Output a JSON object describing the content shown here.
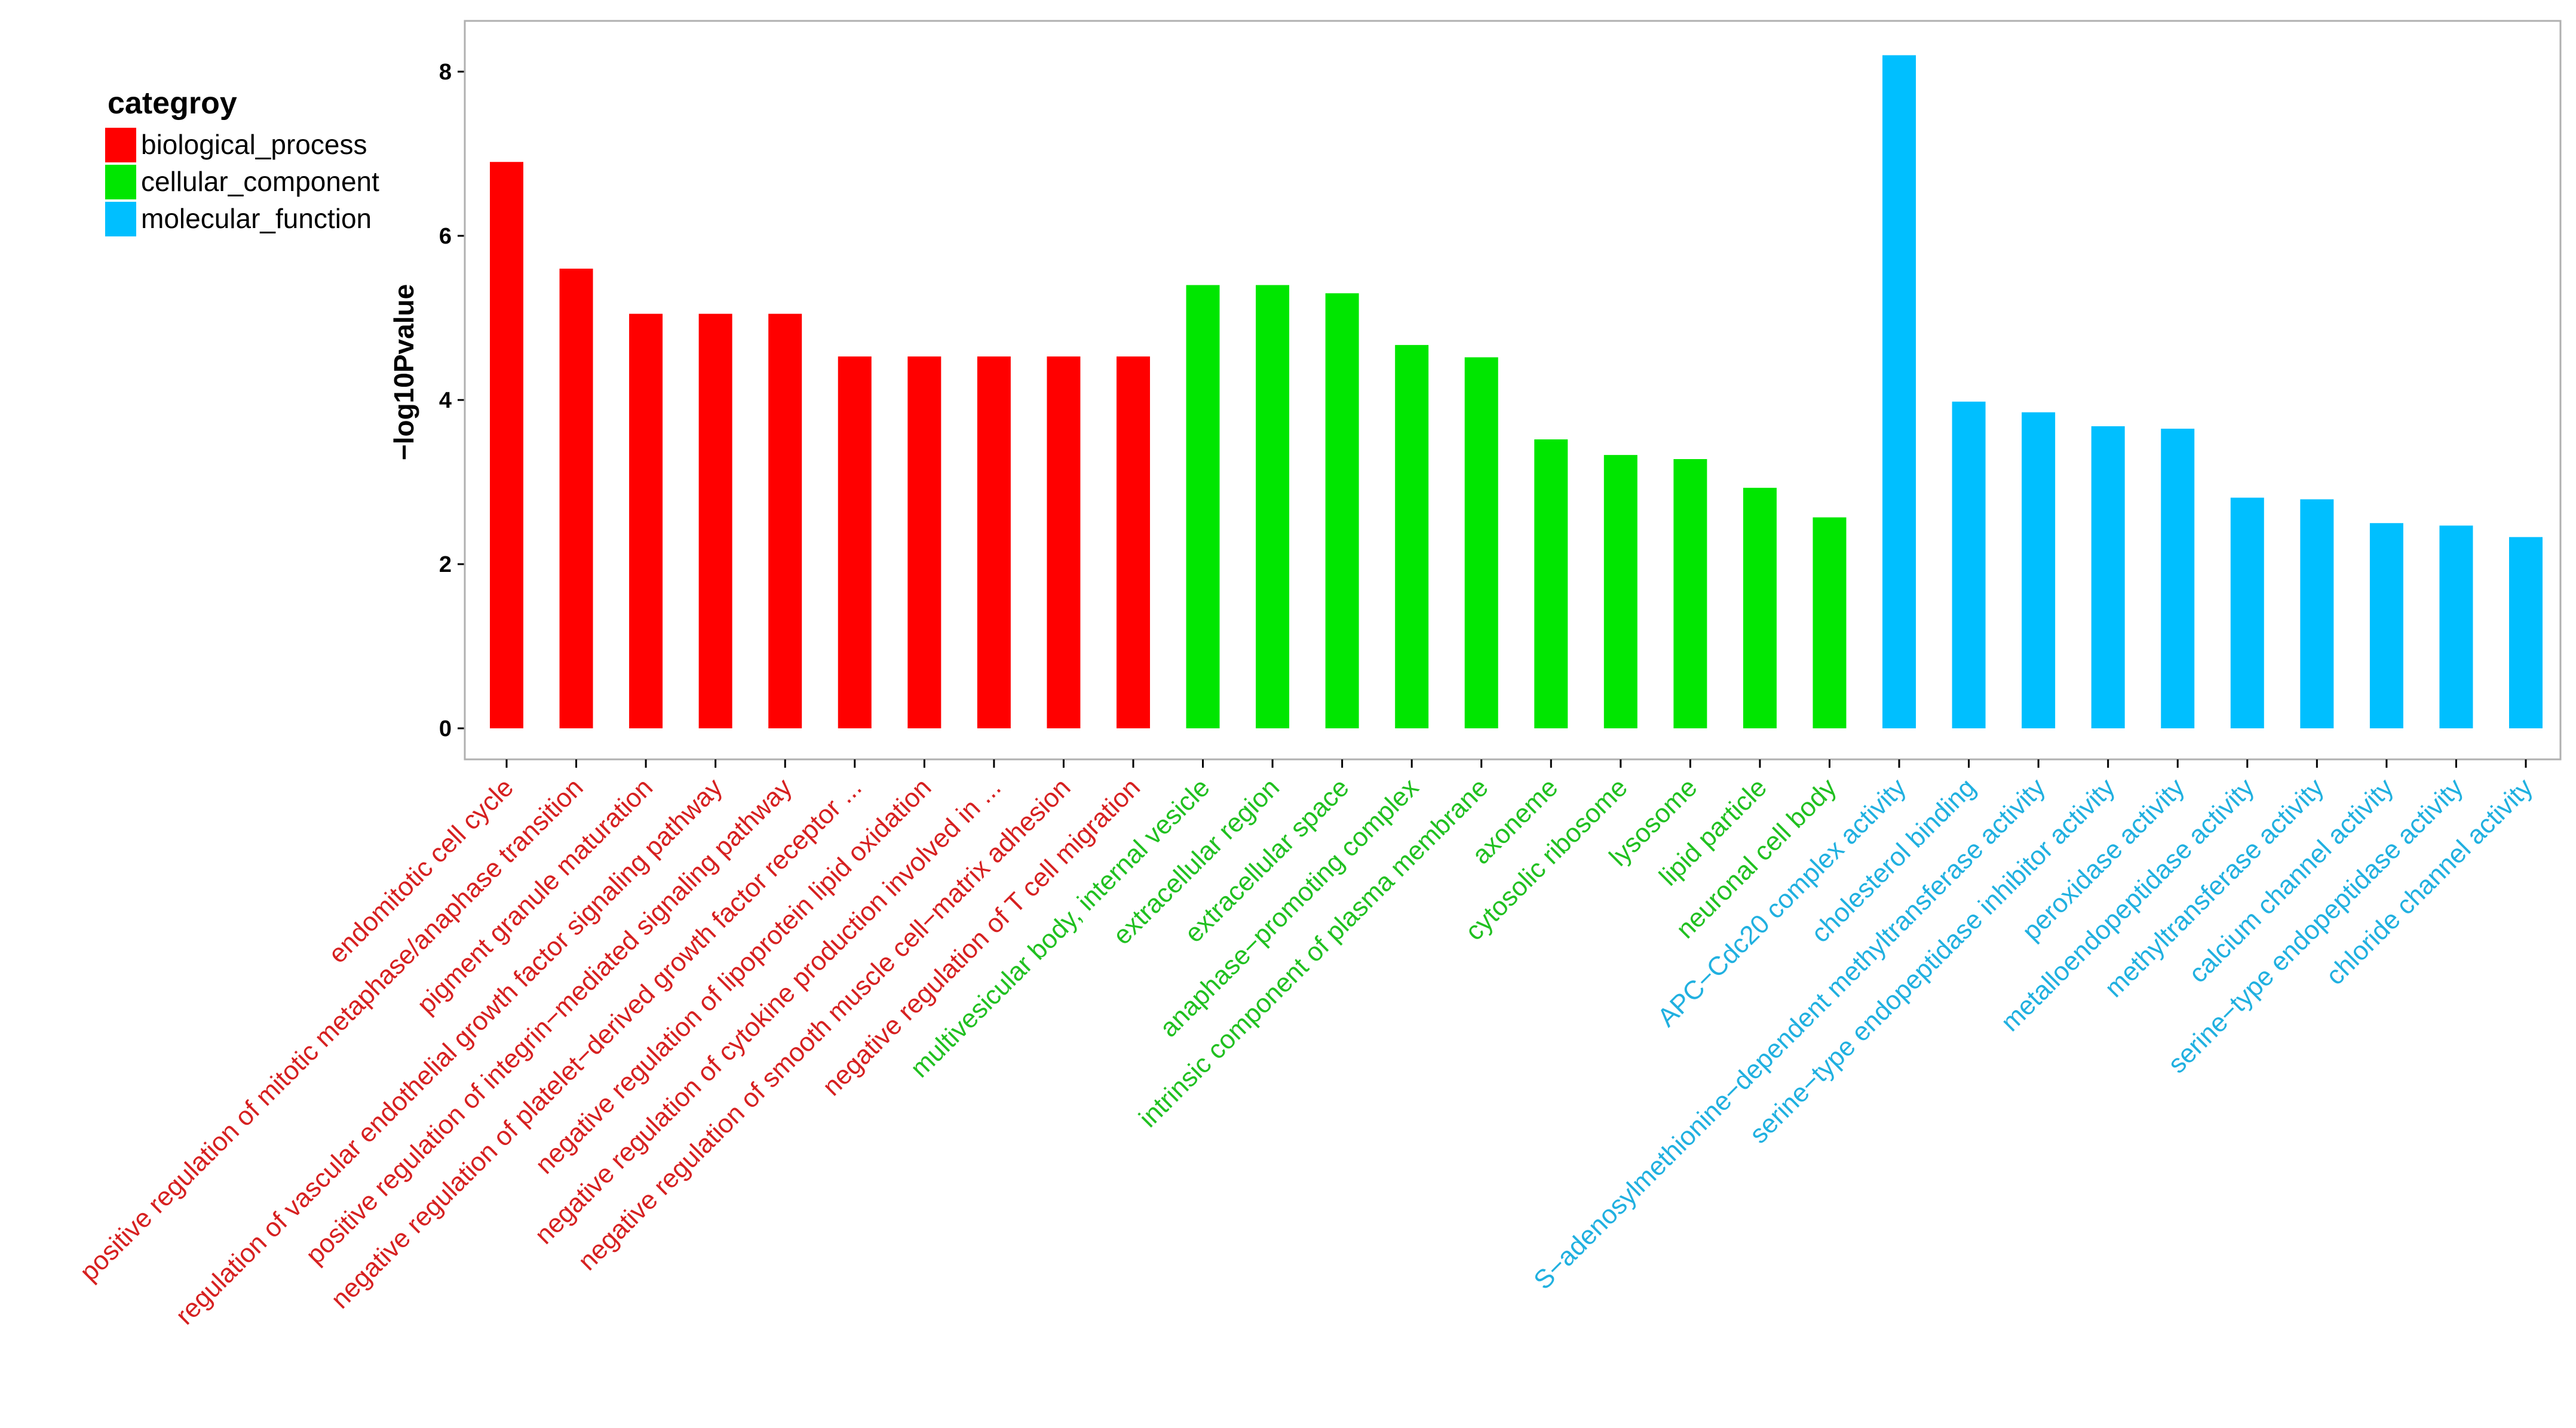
{
  "chart_data": {
    "type": "bar",
    "title": "",
    "xlabel": "",
    "ylabel": "−log10Pvalue",
    "ylim": [
      0,
      8.6
    ],
    "yticks": [
      0,
      2,
      4,
      6,
      8
    ],
    "grid": false,
    "legend": {
      "title": "categroy",
      "placement": "top-left",
      "entries": [
        {
          "name": "biological_process",
          "color": "#ff0000"
        },
        {
          "name": "cellular_component",
          "color": "#00e600"
        },
        {
          "name": "molecular_function",
          "color": "#00bfff"
        }
      ]
    },
    "categories": [
      "endomitotic cell cycle",
      "positive regulation of mitotic metaphase/anaphase transition",
      "pigment granule maturation",
      "regulation of vascular endothelial growth factor signaling pathway",
      "positive regulation of integrin−mediated signaling pathway",
      "negative regulation of platelet−derived growth factor receptor ...",
      "negative regulation of lipoprotein lipid oxidation",
      "negative regulation of cytokine production involved in ...",
      "negative regulation of smooth muscle cell−matrix adhesion",
      "negative regulation of T cell migration",
      "multivesicular body, internal vesicle",
      "extracellular region",
      "extracellular space",
      "anaphase−promoting complex",
      "intrinsic component of plasma membrane",
      "axoneme",
      "cytosolic ribosome",
      "lysosome",
      "lipid particle",
      "neuronal cell body",
      "APC−Cdc20 complex activity",
      "cholesterol binding",
      "S−adenosylmethionine−dependent methyltransferase activity",
      "serine−type endopeptidase inhibitor activity",
      "peroxidase activity",
      "metalloendopeptidase activity",
      "methyltransferase activity",
      "calcium channel activity",
      "serine−type endopeptidase activity",
      "chloride channel activity"
    ],
    "values": [
      6.9,
      5.6,
      5.05,
      5.05,
      5.05,
      4.53,
      4.53,
      4.53,
      4.53,
      4.53,
      5.4,
      5.4,
      5.3,
      4.67,
      4.52,
      3.52,
      3.33,
      3.28,
      2.93,
      2.57,
      8.2,
      3.98,
      3.85,
      3.68,
      3.65,
      2.81,
      2.79,
      2.5,
      2.47,
      2.33
    ],
    "groups": [
      "biological_process",
      "biological_process",
      "biological_process",
      "biological_process",
      "biological_process",
      "biological_process",
      "biological_process",
      "biological_process",
      "biological_process",
      "biological_process",
      "cellular_component",
      "cellular_component",
      "cellular_component",
      "cellular_component",
      "cellular_component",
      "cellular_component",
      "cellular_component",
      "cellular_component",
      "cellular_component",
      "cellular_component",
      "molecular_function",
      "molecular_function",
      "molecular_function",
      "molecular_function",
      "molecular_function",
      "molecular_function",
      "molecular_function",
      "molecular_function",
      "molecular_function",
      "molecular_function"
    ],
    "label_colors": {
      "biological_process": "#d62020",
      "cellular_component": "#20c020",
      "molecular_function": "#20b0e0"
    }
  }
}
